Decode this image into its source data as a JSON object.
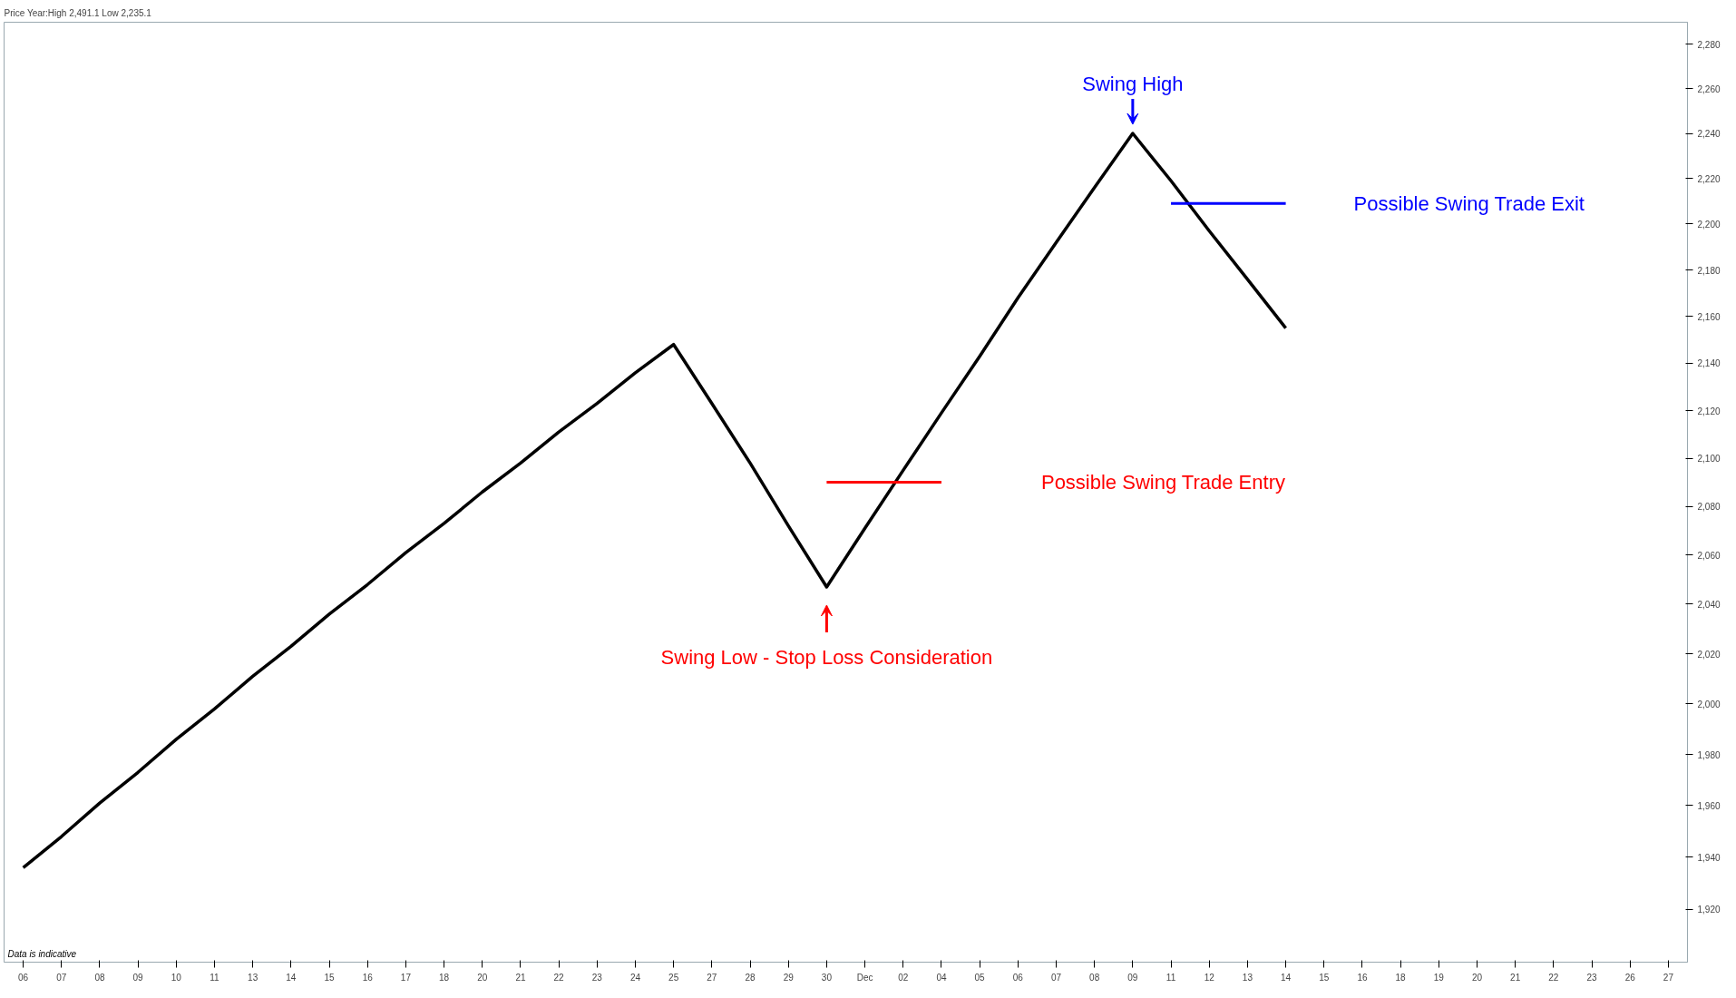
{
  "chart_data": {
    "type": "line",
    "title": "Price",
    "subtitle": "Year:High 2,491.1 Low 2,235.1",
    "categories": [
      "06",
      "07",
      "08",
      "09",
      "10",
      "11",
      "13",
      "14",
      "15",
      "16",
      "17",
      "18",
      "20",
      "21",
      "22",
      "23",
      "24",
      "25",
      "27",
      "28",
      "29",
      "30",
      "Dec",
      "02",
      "04",
      "05",
      "06",
      "07",
      "08",
      "09",
      "11",
      "12",
      "13",
      "14",
      "15",
      "16",
      "18",
      "19",
      "20",
      "21",
      "22",
      "23",
      "26",
      "27"
    ],
    "series": [
      {
        "color": "#000000",
        "values": [
          1936,
          1948,
          1961,
          1973,
          1986,
          1998,
          2011,
          2023,
          2036,
          2048,
          2061,
          2073,
          2086,
          2098,
          2111,
          2123,
          2136,
          2148,
          2123,
          2098,
          2072,
          2047,
          2071,
          2095,
          2119,
          2143,
          2168,
          2192,
          2216,
          2240,
          2219,
          2197,
          2176,
          2155,
          null,
          null,
          null,
          null,
          null,
          null,
          null,
          null,
          null,
          null
        ]
      },
      {
        "color": "#ff0000",
        "values": [
          null,
          null,
          null,
          null,
          null,
          null,
          null,
          null,
          null,
          null,
          null,
          null,
          null,
          null,
          null,
          null,
          null,
          null,
          null,
          null,
          null,
          2090,
          2090,
          2090,
          2090,
          null,
          null,
          null,
          null,
          null,
          null,
          null,
          null,
          null,
          null,
          null,
          null,
          null,
          null,
          null,
          null,
          null,
          null,
          null
        ]
      },
      {
        "color": "#0000ff",
        "values": [
          null,
          null,
          null,
          null,
          null,
          null,
          null,
          null,
          null,
          null,
          null,
          null,
          null,
          null,
          null,
          null,
          null,
          null,
          null,
          null,
          null,
          null,
          null,
          null,
          null,
          null,
          null,
          null,
          null,
          null,
          2209,
          2209,
          2209,
          2209,
          null,
          null,
          null,
          null,
          null,
          null,
          null,
          null,
          null,
          null
        ]
      }
    ],
    "log": "y",
    "ylim": [
      1900,
      2290
    ],
    "yticks": [
      {
        "value": 1920,
        "label": "1,920"
      },
      {
        "value": 1940,
        "label": "1,940"
      },
      {
        "value": 1960,
        "label": "1,960"
      },
      {
        "value": 1980,
        "label": "1,980"
      },
      {
        "value": 2000,
        "label": "2,000"
      },
      {
        "value": 2020,
        "label": "2,020"
      },
      {
        "value": 2040,
        "label": "2,040"
      },
      {
        "value": 2060,
        "label": "2,060"
      },
      {
        "value": 2080,
        "label": "2,080"
      },
      {
        "value": 2100,
        "label": "2,100"
      },
      {
        "value": 2120,
        "label": "2,120"
      },
      {
        "value": 2140,
        "label": "2,140"
      },
      {
        "value": 2160,
        "label": "2,160"
      },
      {
        "value": 2180,
        "label": "2,180"
      },
      {
        "value": 2200,
        "label": "2,200"
      },
      {
        "value": 2220,
        "label": "2,220"
      },
      {
        "value": 2240,
        "label": "2,240"
      },
      {
        "value": 2260,
        "label": "2,260"
      },
      {
        "value": 2280,
        "label": "2,280"
      }
    ],
    "grid": false,
    "marker": "none",
    "line_style": "solid",
    "annotations": [
      "Swing High",
      "Possible Swing Trade Exit",
      "Possible Swing Trade Entry",
      "Swing Low - Stop Loss Consideration",
      "Data is indicative"
    ]
  }
}
